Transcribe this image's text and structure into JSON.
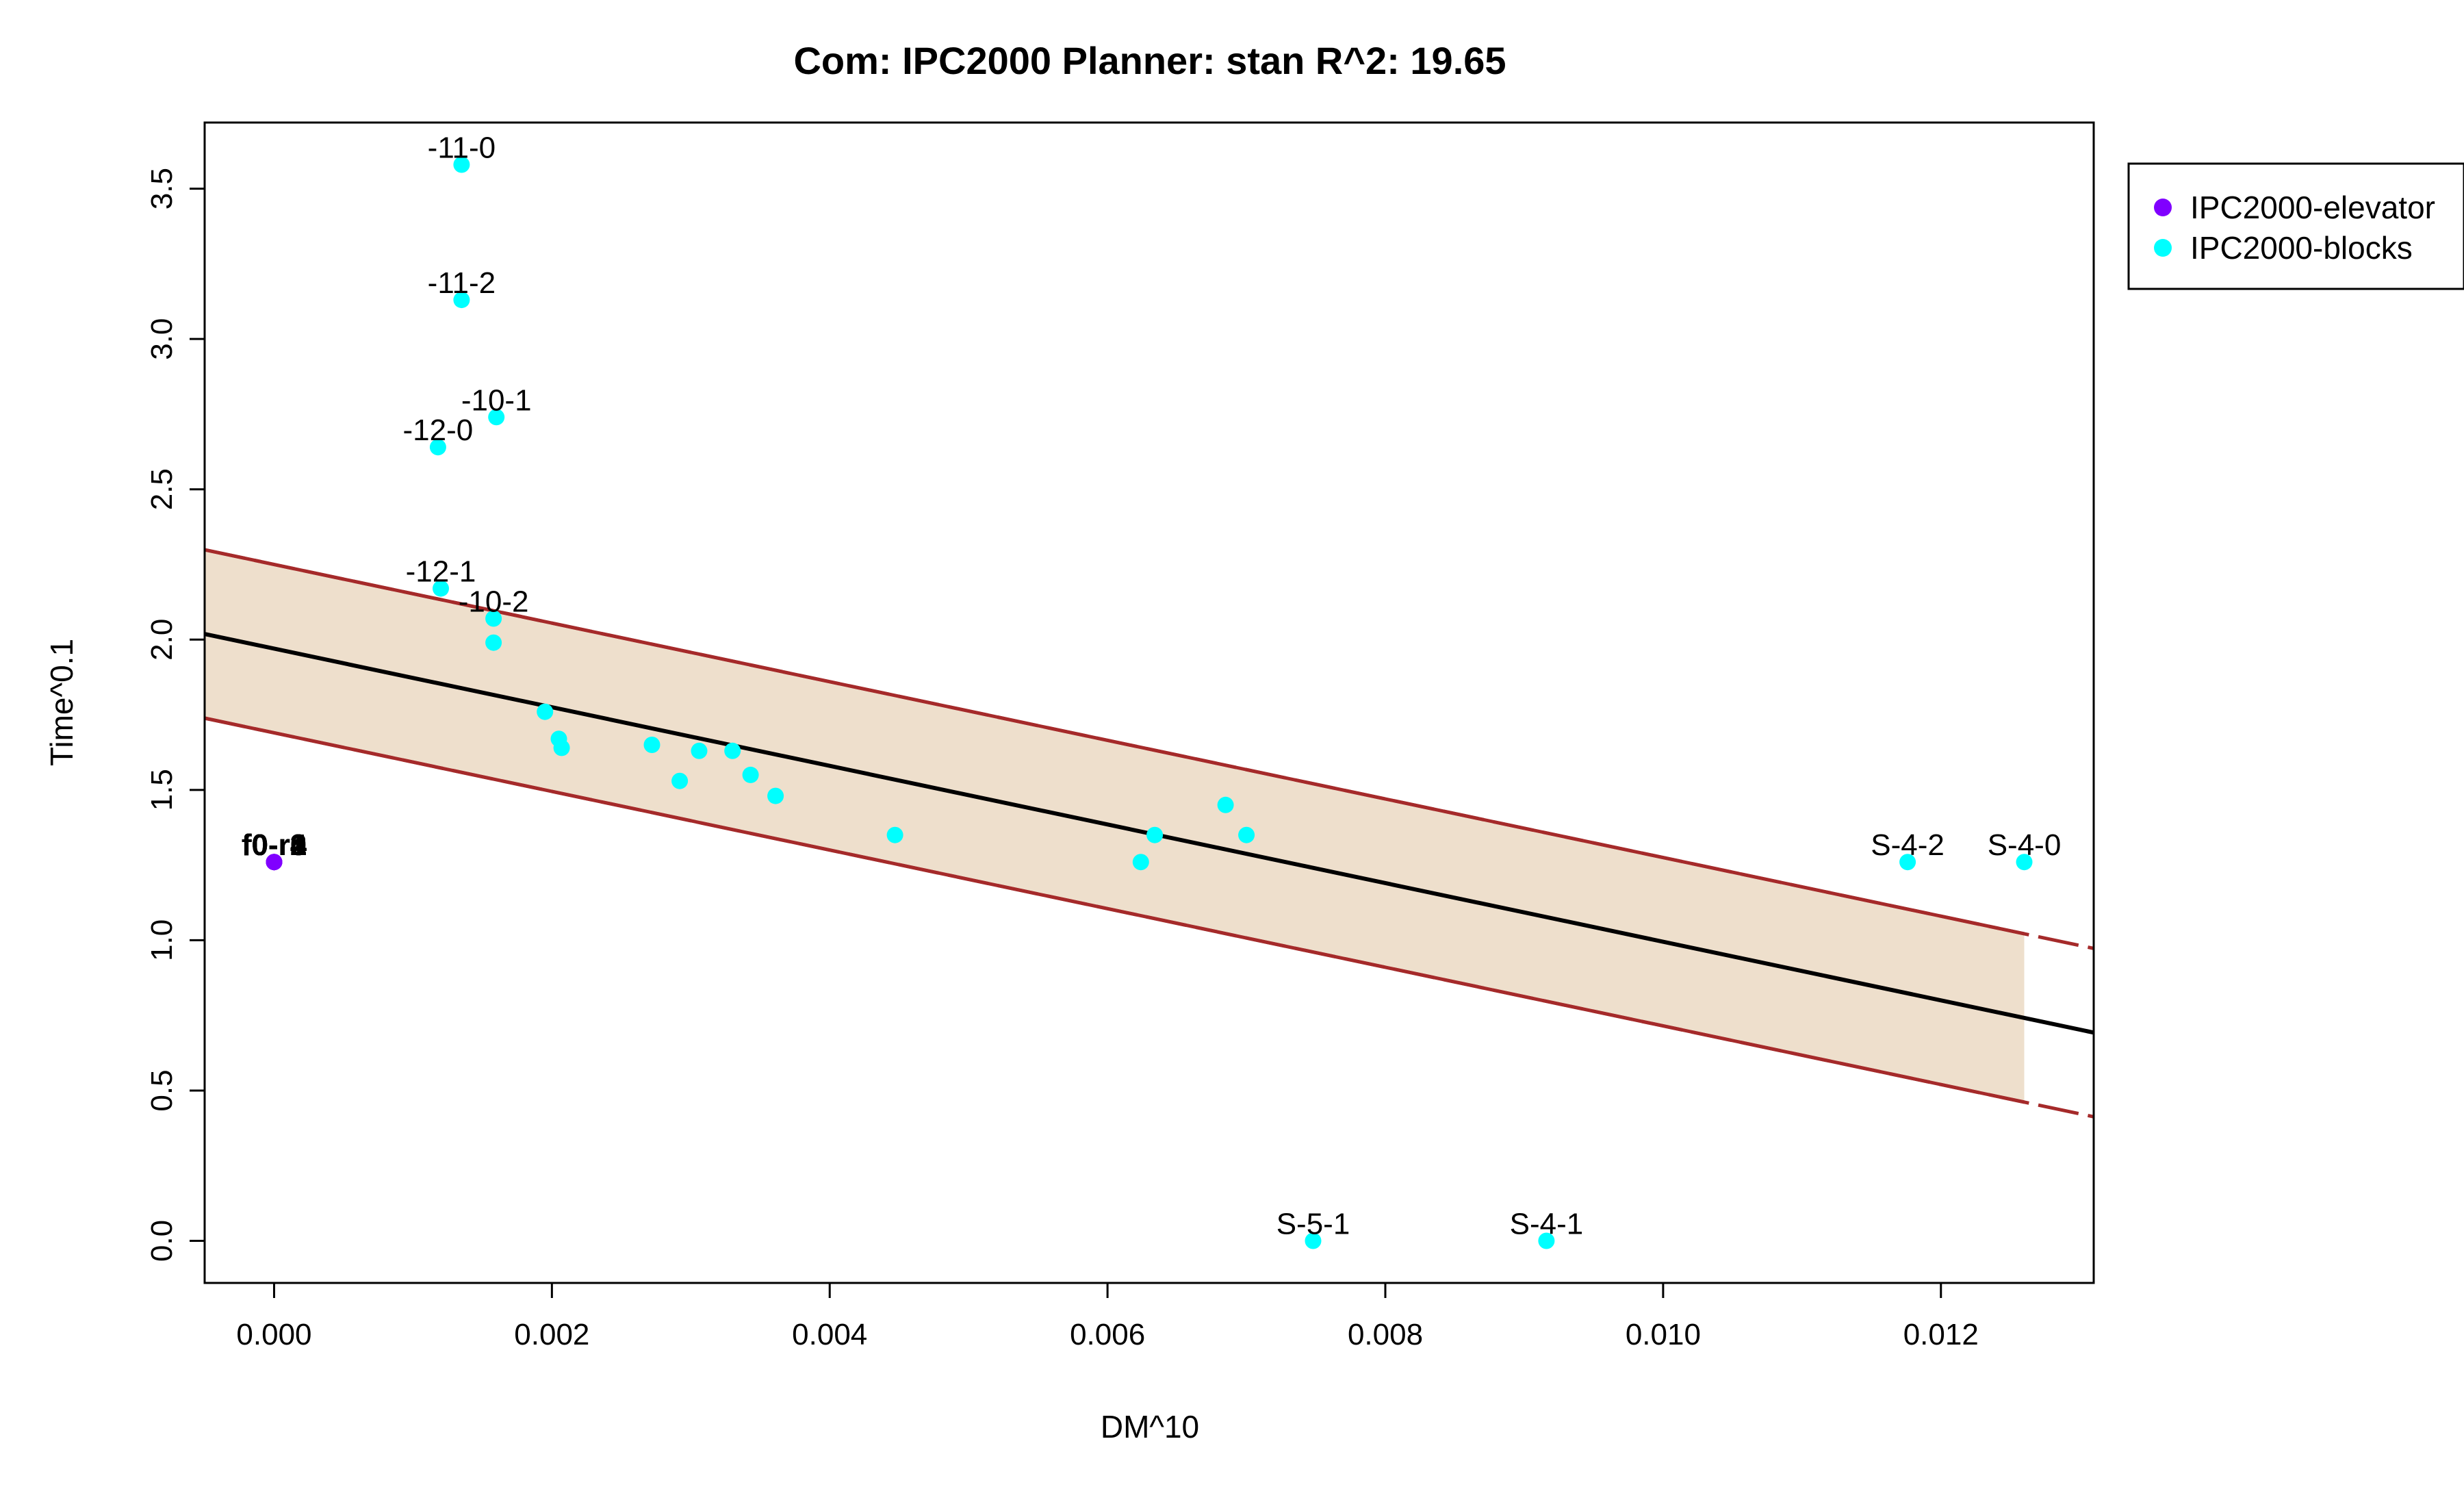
{
  "chart_data": {
    "type": "scatter",
    "title": "Com: IPC2000 Planner: stan R^2: 19.65",
    "xlabel": "DM^10",
    "ylabel": "Time^0.1",
    "xlim": [
      -0.0005,
      0.0131
    ],
    "ylim": [
      -0.14,
      3.72
    ],
    "xticks": [
      0.0,
      0.002,
      0.004,
      0.006,
      0.008,
      0.01,
      0.012
    ],
    "xtick_labels": [
      "0.000",
      "0.002",
      "0.004",
      "0.006",
      "0.008",
      "0.010",
      "0.012"
    ],
    "yticks": [
      0.0,
      0.5,
      1.0,
      1.5,
      2.0,
      2.5,
      3.0,
      3.5
    ],
    "ytick_labels": [
      "0.0",
      "0.5",
      "1.0",
      "1.5",
      "2.0",
      "2.5",
      "3.0",
      "3.5"
    ],
    "grid": false,
    "legend_position": "top-right-outside",
    "series": [
      {
        "name": "IPC2000-elevator",
        "color": "#8000FF",
        "points": [
          {
            "x": 0.0,
            "y": 1.26,
            "label": "f0-r0"
          },
          {
            "x": 0.0,
            "y": 1.26,
            "label": "f0-r1"
          },
          {
            "x": 0.0,
            "y": 1.26,
            "label": "f0-r2"
          },
          {
            "x": 0.0,
            "y": 1.26,
            "label": "f0-r3"
          },
          {
            "x": 0.0,
            "y": 1.26,
            "label": "f0-r4"
          }
        ]
      },
      {
        "name": "IPC2000-blocks",
        "color": "#00FFFF",
        "points": [
          {
            "x": 0.00135,
            "y": 3.58,
            "label": "-11-0"
          },
          {
            "x": 0.00135,
            "y": 3.13,
            "label": "-11-2"
          },
          {
            "x": 0.0016,
            "y": 2.74,
            "label": "-10-1"
          },
          {
            "x": 0.00118,
            "y": 2.64,
            "label": "-12-0"
          },
          {
            "x": 0.0012,
            "y": 2.17,
            "label": "-12-1"
          },
          {
            "x": 0.00158,
            "y": 2.07,
            "label": "-10-2"
          },
          {
            "x": 0.00158,
            "y": 1.99
          },
          {
            "x": 0.00195,
            "y": 1.76
          },
          {
            "x": 0.00205,
            "y": 1.67
          },
          {
            "x": 0.00207,
            "y": 1.64
          },
          {
            "x": 0.00272,
            "y": 1.65
          },
          {
            "x": 0.00292,
            "y": 1.53
          },
          {
            "x": 0.00306,
            "y": 1.63
          },
          {
            "x": 0.0033,
            "y": 1.63
          },
          {
            "x": 0.00343,
            "y": 1.55
          },
          {
            "x": 0.00361,
            "y": 1.48
          },
          {
            "x": 0.00447,
            "y": 1.35
          },
          {
            "x": 0.00624,
            "y": 1.26
          },
          {
            "x": 0.00634,
            "y": 1.35
          },
          {
            "x": 0.00685,
            "y": 1.45
          },
          {
            "x": 0.007,
            "y": 1.35
          },
          {
            "x": 0.00748,
            "y": 0.0,
            "label": "S-5-1"
          },
          {
            "x": 0.00916,
            "y": 0.0,
            "label": "S-4-1"
          },
          {
            "x": 0.01176,
            "y": 1.26,
            "label": "S-4-2"
          },
          {
            "x": 0.0126,
            "y": 1.26,
            "label": "S-4-0"
          }
        ]
      }
    ],
    "regression": {
      "intercept": 1.97,
      "slope": -97.5,
      "band_halfwidth": 0.28,
      "band_x_range": [
        -0.0005,
        0.0126
      ],
      "line_color": "#000000",
      "band_line_color": "#A52A2A",
      "band_fill_color": "#EEDFCC"
    }
  }
}
